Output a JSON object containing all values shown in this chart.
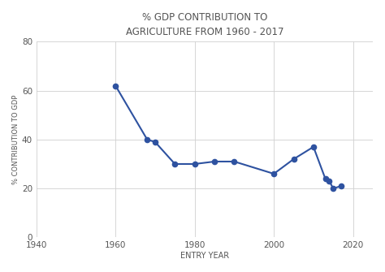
{
  "x": [
    1960,
    1968,
    1970,
    1975,
    1980,
    1985,
    1990,
    2000,
    2005,
    2010,
    2013,
    2014,
    2015,
    2017
  ],
  "y": [
    62,
    40,
    39,
    30,
    30,
    31,
    31,
    26,
    32,
    37,
    24,
    23,
    20,
    21
  ],
  "line_color": "#2e52a0",
  "marker_color": "#2e52a0",
  "title_line1": "% GDP CONTRIBUTION TO",
  "title_line2": "AGRICULTURE FROM 1960 - 2017",
  "xlabel": "ENTRY YEAR",
  "ylabel": "% CONTRIBUTION TO GDP",
  "xlim": [
    1940,
    2025
  ],
  "ylim": [
    0,
    80
  ],
  "xticks": [
    1940,
    1960,
    1980,
    2000,
    2020
  ],
  "yticks": [
    0,
    20,
    40,
    60,
    80
  ],
  "background_color": "#ffffff",
  "grid_color": "#d0d0d0",
  "title_color": "#555555",
  "axis_label_color": "#555555",
  "tick_color": "#555555"
}
